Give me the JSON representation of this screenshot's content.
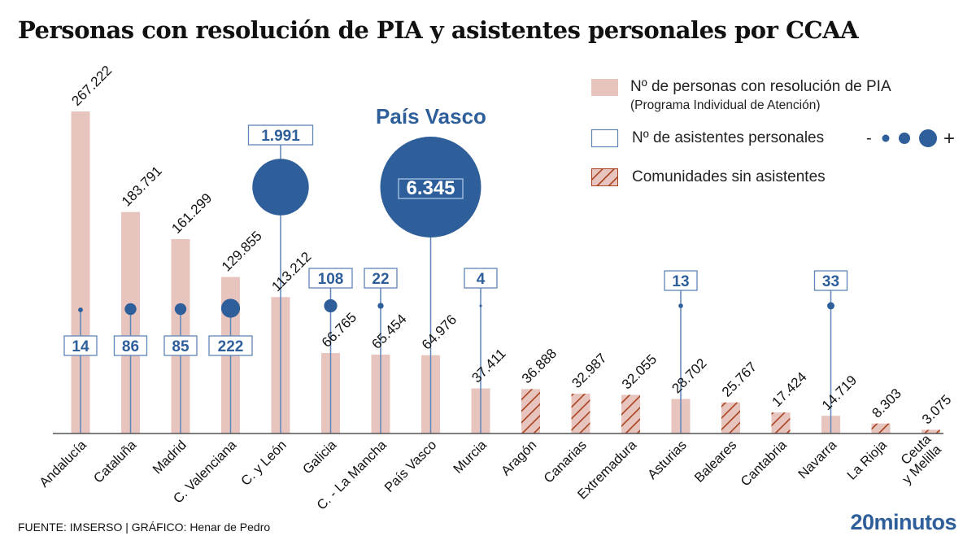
{
  "title": "Personas con resolución de PIA y asistentes personales por CCAA",
  "highlight_label": "País Vasco",
  "legend": {
    "pia_label": "Nº de personas con resolución de PIA",
    "pia_sub": "(Programa Individual de Atención)",
    "asistentes_label": "Nº de asistentes personales",
    "scale_min": "-",
    "scale_max": "+",
    "sin_asistentes_label": "Comunidades sin asistentes"
  },
  "colors": {
    "bar": "#e8c4be",
    "bubble": "#2e5f9a",
    "hatch": "#a8421e",
    "axis": "#555555"
  },
  "footer": {
    "source": "FUENTE: IMSERSO |  GRÁFICO: Henar de Pedro"
  },
  "logo": "20minutos",
  "chart_data": {
    "type": "bar",
    "title": "Personas con resolución de PIA y asistentes personales por CCAA",
    "xlabel": "",
    "ylabel": "",
    "categories": [
      "Andalucía",
      "Cataluña",
      "Madrid",
      "C. Valenciana",
      "C. y León",
      "Galicia",
      "C. - La Mancha",
      "País Vasco",
      "Murcia",
      "Aragón",
      "Canarias",
      "Extremadura",
      "Asturias",
      "Baleares",
      "Cantabria",
      "Navarra",
      "La Rioja",
      "Ceuta\ny Melilla"
    ],
    "series": [
      {
        "name": "Nº de personas con resolución de PIA",
        "values": [
          267222,
          183791,
          161299,
          129855,
          113212,
          66765,
          65454,
          64976,
          37411,
          36888,
          32987,
          32055,
          28702,
          25767,
          17424,
          14719,
          8303,
          3075
        ],
        "labels": [
          "267.222",
          "183.791",
          "161.299",
          "129.855",
          "113.212",
          "66.765",
          "65.454",
          "64.976",
          "37.411",
          "36.888",
          "32.987",
          "32.055",
          "28.702",
          "25.767",
          "17.424",
          "14.719",
          "8.303",
          "3.075"
        ]
      },
      {
        "name": "Nº de asistentes personales",
        "values": [
          14,
          86,
          85,
          222,
          1991,
          108,
          22,
          6345,
          4,
          0,
          0,
          0,
          13,
          0,
          0,
          33,
          0,
          0
        ],
        "labels": [
          "14",
          "86",
          "85",
          "222",
          "1.991",
          "108",
          "22",
          "6.345",
          "4",
          "",
          "",
          "",
          "13",
          "",
          "",
          "33",
          "",
          ""
        ]
      }
    ],
    "sin_asistentes": [
      false,
      false,
      false,
      false,
      false,
      false,
      false,
      false,
      false,
      true,
      true,
      true,
      false,
      true,
      true,
      false,
      true,
      true
    ],
    "ylim": [
      0,
      267222
    ],
    "grid": false,
    "legend_position": "top-right"
  }
}
